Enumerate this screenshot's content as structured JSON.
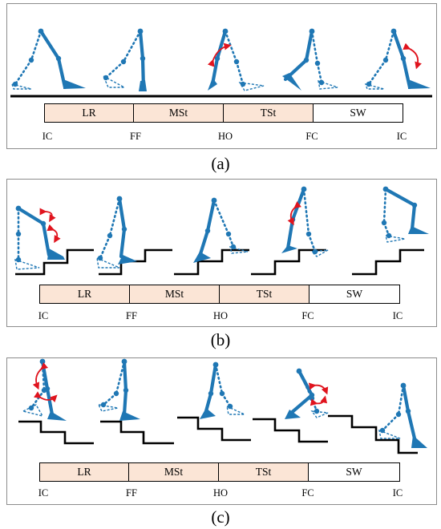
{
  "colors": {
    "leg": "#1f77b4",
    "arrow": "#e0141e",
    "stance_fill": "#fbe5d6",
    "ground": "#000000"
  },
  "panels": [
    {
      "id": "a",
      "caption": "(a)",
      "terrain": "level-walking",
      "phases": [
        {
          "label": "LR",
          "type": "stance"
        },
        {
          "label": "MSt",
          "type": "stance"
        },
        {
          "label": "TSt",
          "type": "stance"
        },
        {
          "label": "SW",
          "type": "swing"
        }
      ],
      "events": [
        "IC",
        "FF",
        "HO",
        "FC",
        "IC"
      ]
    },
    {
      "id": "b",
      "caption": "(b)",
      "terrain": "stair-ascent",
      "phases": [
        {
          "label": "LR",
          "type": "stance"
        },
        {
          "label": "MSt",
          "type": "stance"
        },
        {
          "label": "TSt",
          "type": "stance"
        },
        {
          "label": "SW",
          "type": "swing"
        }
      ],
      "events": [
        "IC",
        "FF",
        "HO",
        "FC",
        "IC"
      ]
    },
    {
      "id": "c",
      "caption": "(c)",
      "terrain": "stair-descent",
      "phases": [
        {
          "label": "LR",
          "type": "stance"
        },
        {
          "label": "MSt",
          "type": "stance"
        },
        {
          "label": "TSt",
          "type": "stance"
        },
        {
          "label": "SW",
          "type": "swing"
        }
      ],
      "events": [
        "IC",
        "FF",
        "HO",
        "FC",
        "IC"
      ]
    }
  ]
}
